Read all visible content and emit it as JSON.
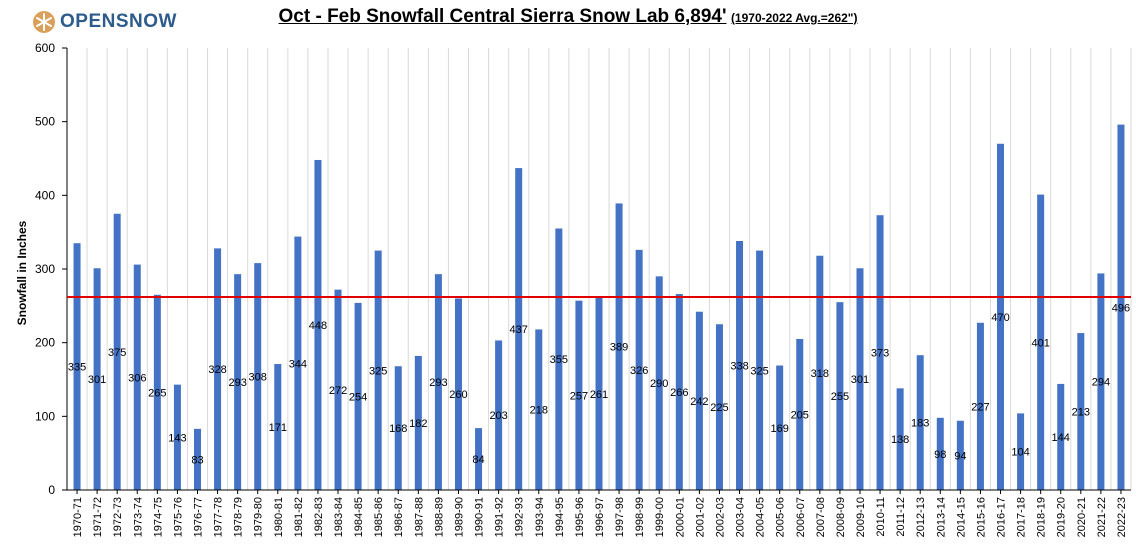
{
  "logo": {
    "text": "OPENSNOW",
    "icon": "snowflake-icon",
    "colors": {
      "badge": "#d9a05b",
      "text": "#2c5b8c"
    }
  },
  "colors": {
    "bar": "#4472c4",
    "average_line": "#e00000",
    "grid": "#d9d9d9",
    "axis": "#000000"
  },
  "chart_data": {
    "type": "bar",
    "title": "Oct - Feb Snowfall Central Sierra Snow Lab 6,894'",
    "subtitle": "(1970-2022 Avg.=262\")",
    "xlabel": "",
    "ylabel": "Snowfall in Inches",
    "ylim": [
      0,
      600
    ],
    "yticks": [
      0,
      100,
      200,
      300,
      400,
      500,
      600
    ],
    "grid": "vertical",
    "average": 262,
    "categories": [
      "1970-71",
      "1971-72",
      "1972-73",
      "1973-74",
      "1974-75",
      "1975-76",
      "1976-77",
      "1977-78",
      "1978-79",
      "1979-80",
      "1980-81",
      "1981-82",
      "1982-83",
      "1983-84",
      "1984-85",
      "1985-86",
      "1986-87",
      "1987-88",
      "1988-89",
      "1989-90",
      "1990-91",
      "1991-92",
      "1992-93",
      "1993-94",
      "1994-95",
      "1995-96",
      "1996-97",
      "1997-98",
      "1998-99",
      "1999-00",
      "2000-01",
      "2001-02",
      "2002-03",
      "2003-04",
      "2004-05",
      "2005-06",
      "2006-07",
      "2007-08",
      "2008-09",
      "2009-10",
      "2010-11",
      "2011-12",
      "2012-13",
      "2013-14",
      "2014-15",
      "2015-16",
      "2016-17",
      "2017-18",
      "2018-19",
      "2019-20",
      "2020-21",
      "2021-22",
      "2022-23"
    ],
    "values": [
      335,
      301,
      375,
      306,
      265,
      143,
      83,
      328,
      293,
      308,
      171,
      344,
      448,
      272,
      254,
      325,
      168,
      182,
      293,
      260,
      84,
      203,
      437,
      218,
      355,
      257,
      261,
      389,
      326,
      290,
      266,
      242,
      225,
      338,
      325,
      169,
      205,
      318,
      255,
      301,
      373,
      138,
      183,
      98,
      94,
      227,
      470,
      104,
      401,
      144,
      213,
      294,
      496
    ]
  }
}
